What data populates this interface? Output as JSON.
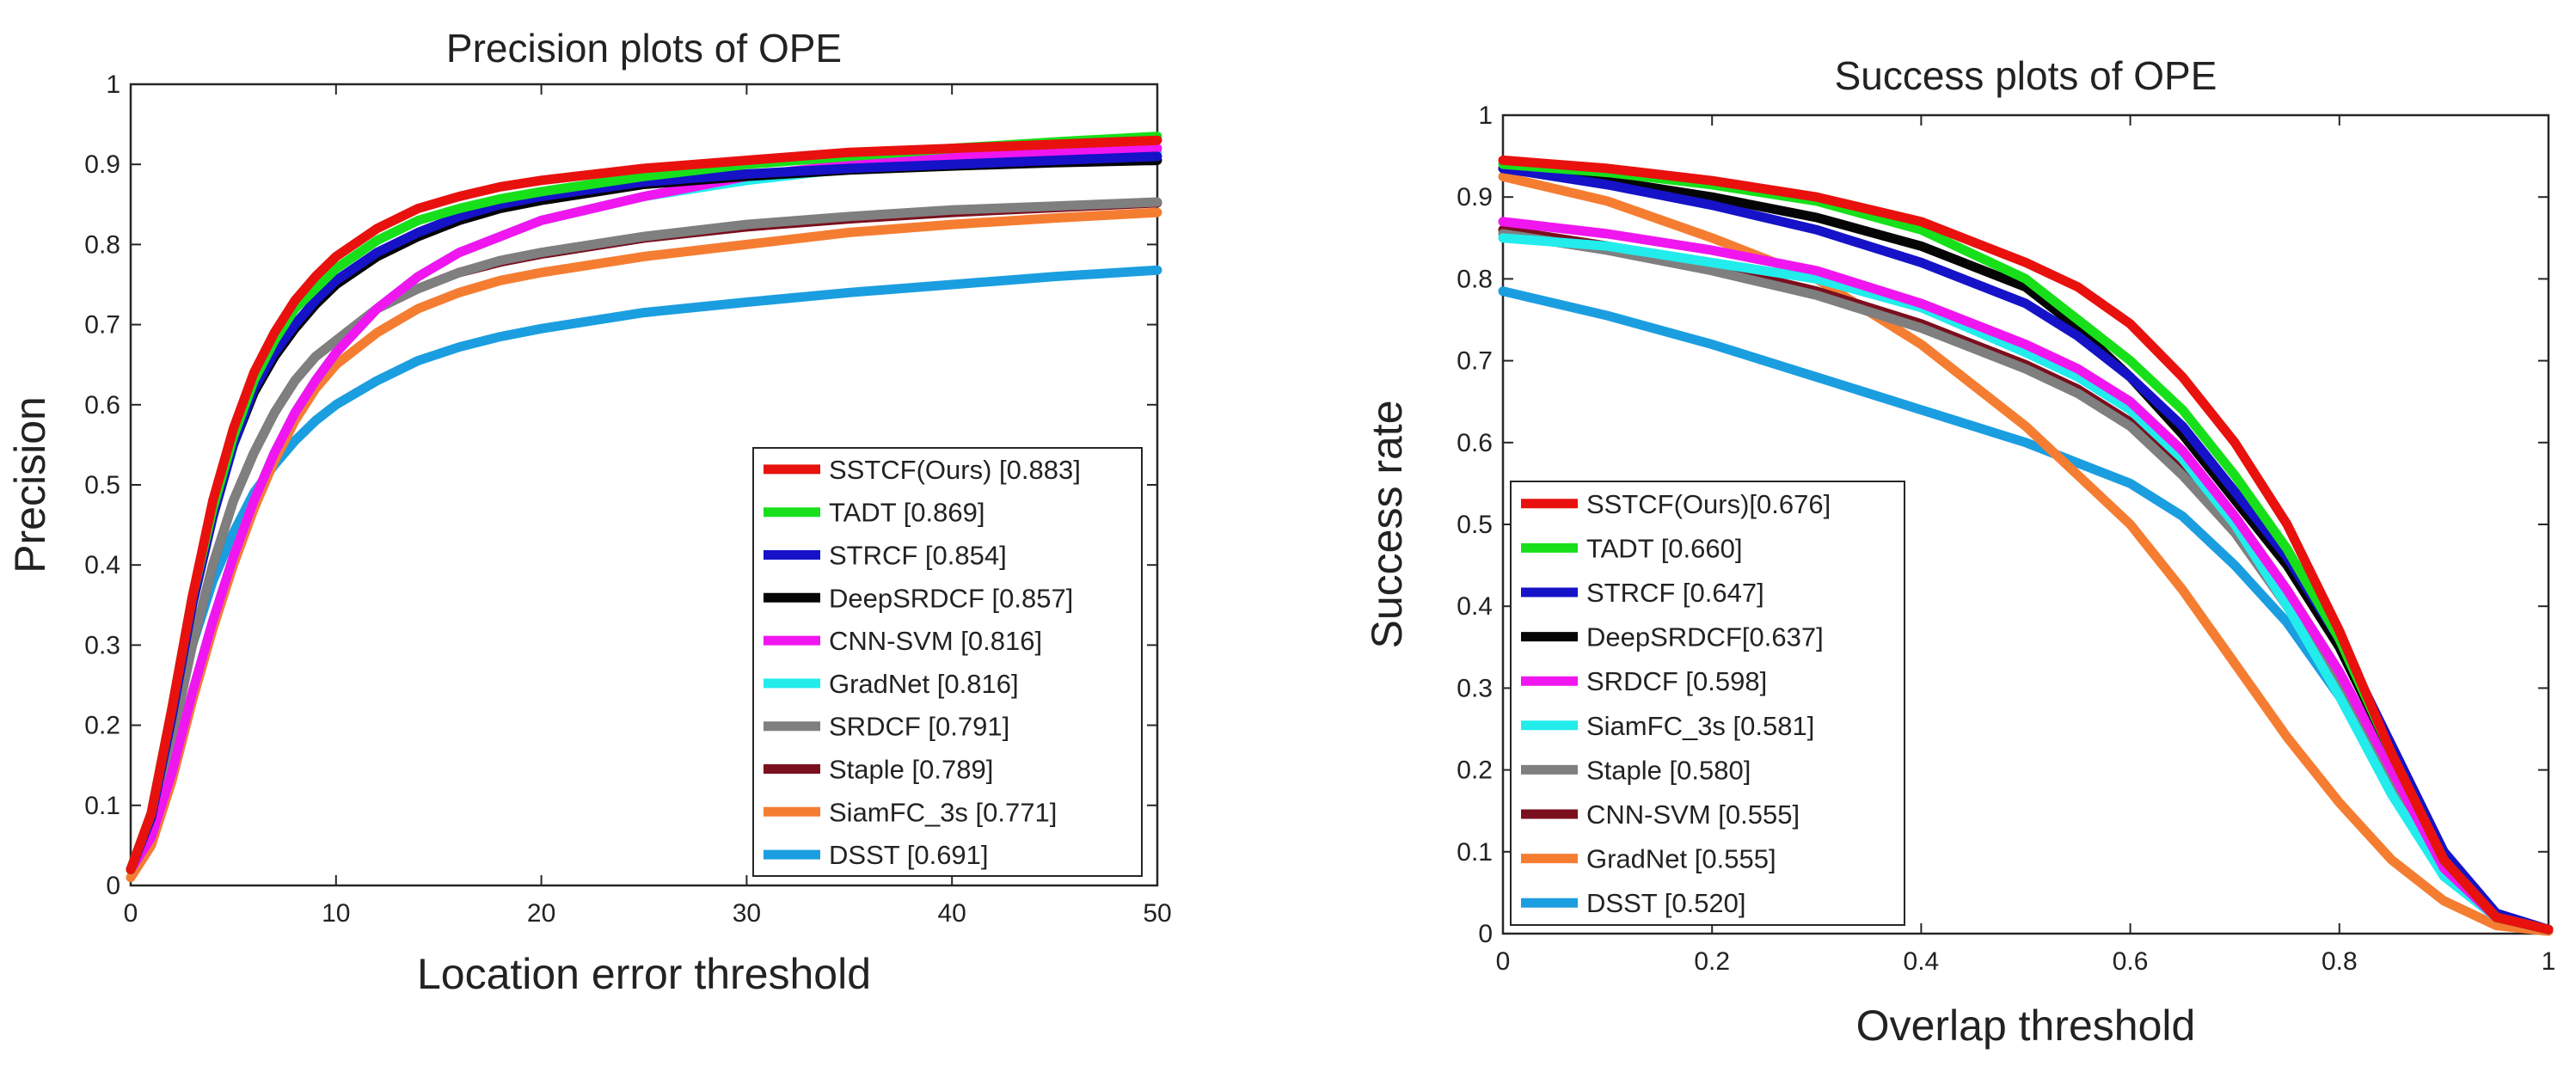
{
  "colors": {
    "red": "#e8110e",
    "green": "#17e01a",
    "blue": "#1512c8",
    "black": "#050505",
    "magenta": "#f016f0",
    "cyan": "#22ecec",
    "gray": "#7f7f7f",
    "maroon": "#7a0f1e",
    "orange": "#f57d32",
    "skyblue": "#1b9ee0"
  },
  "chart_data": [
    {
      "type": "line",
      "title": "Precision plots of OPE",
      "xlabel": "Location error threshold",
      "ylabel": "Precision",
      "xlim": [
        0,
        50
      ],
      "ylim": [
        0,
        1
      ],
      "xticks": [
        "0",
        "10",
        "20",
        "30",
        "40",
        "50"
      ],
      "yticks": [
        "0",
        "0.1",
        "0.2",
        "0.3",
        "0.4",
        "0.5",
        "0.6",
        "0.7",
        "0.8",
        "0.9",
        "1"
      ],
      "legend_position": "bottom-right",
      "series": [
        {
          "name": "SSTCF(Ours) [0.883]",
          "color": "red",
          "x": [
            0,
            1,
            2,
            3,
            4,
            5,
            6,
            7,
            8,
            9,
            10,
            12,
            14,
            16,
            18,
            20,
            25,
            30,
            35,
            40,
            45,
            50
          ],
          "y": [
            0.02,
            0.09,
            0.22,
            0.36,
            0.48,
            0.57,
            0.64,
            0.69,
            0.73,
            0.76,
            0.785,
            0.82,
            0.845,
            0.86,
            0.872,
            0.88,
            0.895,
            0.905,
            0.915,
            0.92,
            0.925,
            0.93
          ]
        },
        {
          "name": "TADT [0.869]",
          "color": "green",
          "x": [
            0,
            1,
            2,
            3,
            4,
            5,
            6,
            7,
            8,
            9,
            10,
            12,
            14,
            16,
            18,
            20,
            25,
            30,
            35,
            40,
            45,
            50
          ],
          "y": [
            0.02,
            0.09,
            0.22,
            0.36,
            0.47,
            0.56,
            0.63,
            0.68,
            0.72,
            0.745,
            0.77,
            0.805,
            0.83,
            0.845,
            0.857,
            0.866,
            0.885,
            0.9,
            0.91,
            0.92,
            0.928,
            0.935
          ]
        },
        {
          "name": "STRCF [0.854]",
          "color": "blue",
          "x": [
            0,
            1,
            2,
            3,
            4,
            5,
            6,
            7,
            8,
            9,
            10,
            12,
            14,
            16,
            18,
            20,
            25,
            30,
            35,
            40,
            45,
            50
          ],
          "y": [
            0.02,
            0.085,
            0.21,
            0.35,
            0.46,
            0.55,
            0.62,
            0.665,
            0.7,
            0.73,
            0.755,
            0.79,
            0.815,
            0.835,
            0.85,
            0.86,
            0.878,
            0.888,
            0.895,
            0.9,
            0.905,
            0.91
          ]
        },
        {
          "name": "DeepSRDCF [0.857]",
          "color": "black",
          "x": [
            0,
            1,
            2,
            3,
            4,
            5,
            6,
            7,
            8,
            9,
            10,
            12,
            14,
            16,
            18,
            20,
            25,
            30,
            35,
            40,
            45,
            50
          ],
          "y": [
            0.02,
            0.085,
            0.21,
            0.35,
            0.46,
            0.55,
            0.615,
            0.66,
            0.695,
            0.725,
            0.75,
            0.785,
            0.81,
            0.83,
            0.845,
            0.855,
            0.875,
            0.885,
            0.893,
            0.898,
            0.902,
            0.905
          ]
        },
        {
          "name": "CNN-SVM [0.816]",
          "color": "magenta",
          "x": [
            0,
            1,
            2,
            3,
            4,
            5,
            6,
            7,
            8,
            9,
            10,
            12,
            14,
            16,
            18,
            20,
            25,
            30,
            35,
            40,
            45,
            50
          ],
          "y": [
            0.02,
            0.06,
            0.14,
            0.24,
            0.33,
            0.41,
            0.48,
            0.54,
            0.59,
            0.63,
            0.665,
            0.72,
            0.76,
            0.79,
            0.81,
            0.83,
            0.86,
            0.885,
            0.9,
            0.91,
            0.915,
            0.92
          ]
        },
        {
          "name": "GradNet [0.816]",
          "color": "cyan",
          "x": [
            0,
            1,
            2,
            3,
            4,
            5,
            6,
            7,
            8,
            9,
            10,
            12,
            14,
            16,
            18,
            20,
            25,
            30,
            35,
            40,
            45,
            50
          ],
          "y": [
            0.02,
            0.06,
            0.14,
            0.24,
            0.33,
            0.41,
            0.48,
            0.54,
            0.59,
            0.63,
            0.665,
            0.72,
            0.76,
            0.79,
            0.81,
            0.83,
            0.86,
            0.88,
            0.895,
            0.905,
            0.91,
            0.915
          ]
        },
        {
          "name": "SRDCF [0.791]",
          "color": "gray",
          "x": [
            0,
            1,
            2,
            3,
            4,
            5,
            6,
            7,
            8,
            9,
            10,
            12,
            14,
            16,
            18,
            20,
            25,
            30,
            35,
            40,
            45,
            50
          ],
          "y": [
            0.02,
            0.075,
            0.18,
            0.3,
            0.4,
            0.48,
            0.54,
            0.59,
            0.63,
            0.66,
            0.68,
            0.72,
            0.745,
            0.765,
            0.78,
            0.79,
            0.81,
            0.825,
            0.835,
            0.843,
            0.848,
            0.853
          ]
        },
        {
          "name": "Staple [0.789]",
          "color": "maroon",
          "x": [
            0,
            1,
            2,
            3,
            4,
            5,
            6,
            7,
            8,
            9,
            10,
            12,
            14,
            16,
            18,
            20,
            25,
            30,
            35,
            40,
            45,
            50
          ],
          "y": [
            0.02,
            0.075,
            0.18,
            0.3,
            0.4,
            0.48,
            0.54,
            0.59,
            0.63,
            0.66,
            0.68,
            0.72,
            0.745,
            0.765,
            0.778,
            0.788,
            0.808,
            0.822,
            0.832,
            0.84,
            0.846,
            0.852
          ]
        },
        {
          "name": "SiamFC_3s [0.771]",
          "color": "orange",
          "x": [
            0,
            1,
            2,
            3,
            4,
            5,
            6,
            7,
            8,
            9,
            10,
            12,
            14,
            16,
            18,
            20,
            25,
            30,
            35,
            40,
            45,
            50
          ],
          "y": [
            0.01,
            0.05,
            0.13,
            0.23,
            0.32,
            0.4,
            0.47,
            0.53,
            0.58,
            0.62,
            0.65,
            0.69,
            0.72,
            0.74,
            0.755,
            0.765,
            0.785,
            0.8,
            0.815,
            0.825,
            0.833,
            0.84
          ]
        },
        {
          "name": "DSST [0.691]",
          "color": "skyblue",
          "x": [
            0,
            1,
            2,
            3,
            4,
            5,
            6,
            7,
            8,
            9,
            10,
            12,
            14,
            16,
            18,
            20,
            25,
            30,
            35,
            40,
            45,
            50
          ],
          "y": [
            0.02,
            0.08,
            0.19,
            0.3,
            0.38,
            0.44,
            0.49,
            0.525,
            0.555,
            0.58,
            0.6,
            0.63,
            0.655,
            0.672,
            0.685,
            0.695,
            0.715,
            0.728,
            0.74,
            0.75,
            0.76,
            0.768
          ]
        }
      ]
    },
    {
      "type": "line",
      "title": "Success plots of OPE",
      "xlabel": "Overlap threshold",
      "ylabel": "Success rate",
      "xlim": [
        0,
        1
      ],
      "ylim": [
        0,
        1
      ],
      "xticks": [
        "0",
        "0.2",
        "0.4",
        "0.6",
        "0.8",
        "1"
      ],
      "yticks": [
        "0",
        "0.1",
        "0.2",
        "0.3",
        "0.4",
        "0.5",
        "0.6",
        "0.7",
        "0.8",
        "0.9",
        "1"
      ],
      "legend_position": "bottom-left",
      "series": [
        {
          "name": "SSTCF(Ours)[0.676]",
          "color": "red",
          "x": [
            0,
            0.1,
            0.2,
            0.3,
            0.4,
            0.5,
            0.55,
            0.6,
            0.65,
            0.7,
            0.75,
            0.8,
            0.85,
            0.9,
            0.95,
            1
          ],
          "y": [
            0.945,
            0.935,
            0.92,
            0.9,
            0.87,
            0.82,
            0.79,
            0.745,
            0.68,
            0.6,
            0.5,
            0.37,
            0.22,
            0.09,
            0.02,
            0.005
          ]
        },
        {
          "name": "TADT  [0.660]",
          "color": "green",
          "x": [
            0,
            0.1,
            0.2,
            0.3,
            0.4,
            0.5,
            0.55,
            0.6,
            0.65,
            0.7,
            0.75,
            0.8,
            0.85,
            0.9,
            0.95,
            1
          ],
          "y": [
            0.94,
            0.93,
            0.915,
            0.895,
            0.86,
            0.8,
            0.75,
            0.7,
            0.64,
            0.56,
            0.47,
            0.36,
            0.22,
            0.09,
            0.02,
            0.005
          ]
        },
        {
          "name": "STRCF [0.647]",
          "color": "blue",
          "x": [
            0,
            0.1,
            0.2,
            0.3,
            0.4,
            0.5,
            0.55,
            0.6,
            0.65,
            0.7,
            0.75,
            0.8,
            0.85,
            0.9,
            0.95,
            1
          ],
          "y": [
            0.935,
            0.915,
            0.89,
            0.86,
            0.82,
            0.77,
            0.73,
            0.68,
            0.62,
            0.54,
            0.46,
            0.36,
            0.23,
            0.1,
            0.025,
            0.005
          ]
        },
        {
          "name": "DeepSRDCF[0.637]",
          "color": "black",
          "x": [
            0,
            0.1,
            0.2,
            0.3,
            0.4,
            0.5,
            0.55,
            0.6,
            0.65,
            0.7,
            0.75,
            0.8,
            0.85,
            0.9,
            0.95,
            1
          ],
          "y": [
            0.935,
            0.92,
            0.9,
            0.875,
            0.84,
            0.79,
            0.74,
            0.68,
            0.61,
            0.53,
            0.45,
            0.35,
            0.22,
            0.09,
            0.02,
            0.005
          ]
        },
        {
          "name": "SRDCF [0.598]",
          "color": "magenta",
          "x": [
            0,
            0.1,
            0.2,
            0.3,
            0.4,
            0.5,
            0.55,
            0.6,
            0.65,
            0.7,
            0.75,
            0.8,
            0.85,
            0.9,
            0.95,
            1
          ],
          "y": [
            0.87,
            0.855,
            0.835,
            0.81,
            0.77,
            0.72,
            0.69,
            0.65,
            0.59,
            0.51,
            0.42,
            0.32,
            0.2,
            0.08,
            0.02,
            0.005
          ]
        },
        {
          "name": "SiamFC_3s [0.581]",
          "color": "cyan",
          "x": [
            0,
            0.1,
            0.2,
            0.3,
            0.4,
            0.5,
            0.55,
            0.6,
            0.65,
            0.7,
            0.75,
            0.8,
            0.85,
            0.9,
            0.95,
            1
          ],
          "y": [
            0.85,
            0.84,
            0.82,
            0.8,
            0.765,
            0.71,
            0.68,
            0.64,
            0.58,
            0.5,
            0.4,
            0.29,
            0.17,
            0.07,
            0.02,
            0.005
          ]
        },
        {
          "name": "Staple [0.580]",
          "color": "gray",
          "x": [
            0,
            0.1,
            0.2,
            0.3,
            0.4,
            0.5,
            0.55,
            0.6,
            0.65,
            0.7,
            0.75,
            0.8,
            0.85,
            0.9,
            0.95,
            1
          ],
          "y": [
            0.855,
            0.835,
            0.81,
            0.78,
            0.74,
            0.69,
            0.66,
            0.62,
            0.56,
            0.49,
            0.4,
            0.3,
            0.18,
            0.075,
            0.02,
            0.005
          ]
        },
        {
          "name": "CNN-SVM [0.555]",
          "color": "maroon",
          "x": [
            0,
            0.1,
            0.2,
            0.3,
            0.4,
            0.5,
            0.55,
            0.6,
            0.65,
            0.7,
            0.75,
            0.8,
            0.85,
            0.9,
            0.95,
            1
          ],
          "y": [
            0.86,
            0.84,
            0.815,
            0.785,
            0.745,
            0.695,
            0.665,
            0.625,
            0.57,
            0.5,
            0.41,
            0.31,
            0.19,
            0.08,
            0.02,
            0.005
          ]
        },
        {
          "name": "GradNet [0.555]",
          "color": "orange",
          "x": [
            0,
            0.1,
            0.2,
            0.3,
            0.4,
            0.5,
            0.55,
            0.6,
            0.65,
            0.7,
            0.75,
            0.8,
            0.85,
            0.9,
            0.95,
            1
          ],
          "y": [
            0.925,
            0.895,
            0.85,
            0.8,
            0.72,
            0.62,
            0.56,
            0.5,
            0.42,
            0.33,
            0.24,
            0.16,
            0.09,
            0.04,
            0.01,
            0.003
          ]
        },
        {
          "name": "DSST [0.520]",
          "color": "skyblue",
          "x": [
            0,
            0.1,
            0.2,
            0.3,
            0.4,
            0.5,
            0.55,
            0.6,
            0.65,
            0.7,
            0.75,
            0.8,
            0.85,
            0.9,
            0.95,
            1
          ],
          "y": [
            0.785,
            0.755,
            0.72,
            0.68,
            0.64,
            0.6,
            0.575,
            0.55,
            0.51,
            0.45,
            0.38,
            0.29,
            0.18,
            0.08,
            0.02,
            0.005
          ]
        }
      ]
    }
  ]
}
